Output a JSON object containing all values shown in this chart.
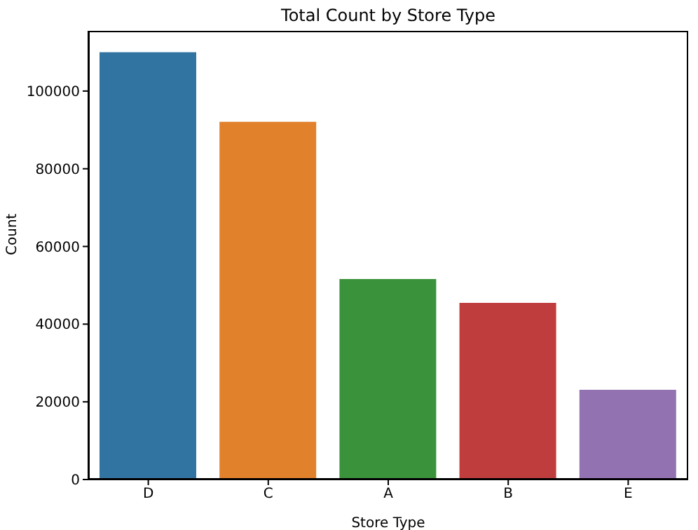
{
  "chart_data": {
    "type": "bar",
    "title": "Total Count by Store Type",
    "xlabel": "Store Type",
    "ylabel": "Count",
    "categories": [
      "D",
      "C",
      "A",
      "B",
      "E"
    ],
    "values": [
      110000,
      92100,
      51600,
      45500,
      23100
    ],
    "colors": [
      "#3274a1",
      "#e1812c",
      "#3a923a",
      "#c03d3e",
      "#9372b2"
    ],
    "ylim": [
      0,
      115500
    ],
    "yticks": [
      0,
      20000,
      40000,
      60000,
      80000,
      100000
    ],
    "grid": false,
    "legend": false
  }
}
